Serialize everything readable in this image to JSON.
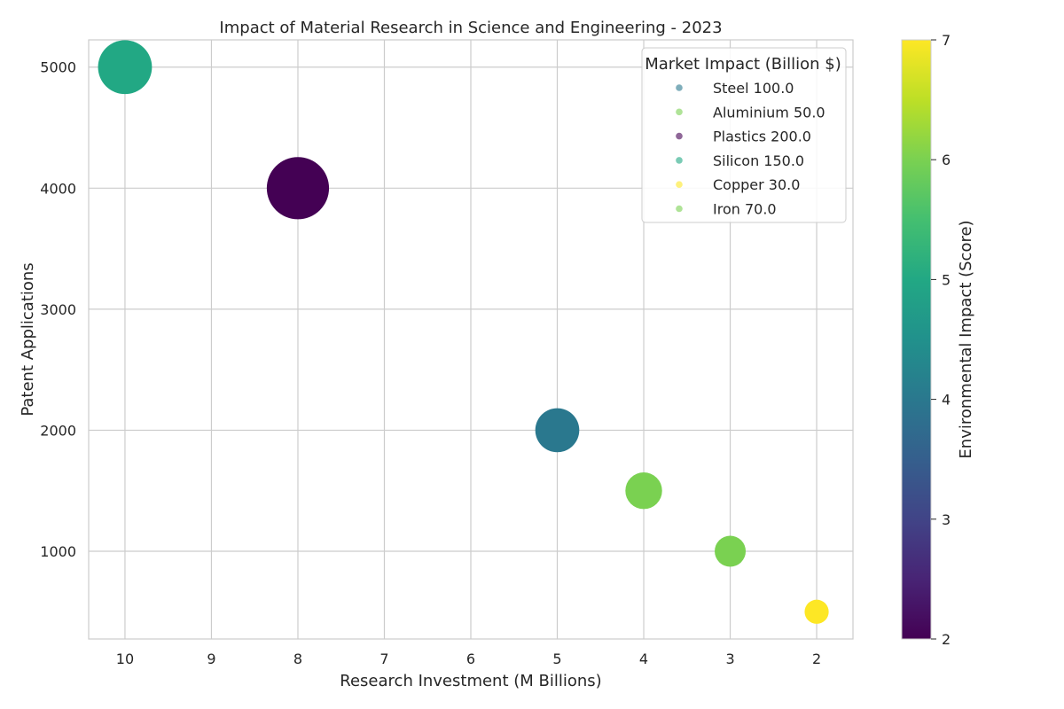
{
  "chart_data": {
    "type": "scatter",
    "title": "Impact of Material Research in Science and Engineering - 2023",
    "xlabel": "Research Investment (M Billions)",
    "ylabel": "Patent Applications",
    "xlim": [
      10.42,
      1.58
    ],
    "ylim": [
      275,
      5225
    ],
    "x_inverted": true,
    "xticks": [
      10,
      9,
      8,
      7,
      6,
      5,
      4,
      3,
      2
    ],
    "yticks": [
      1000,
      2000,
      3000,
      4000,
      5000
    ],
    "grid": true,
    "colormap": "viridis",
    "colorbar": {
      "label": "Environmental Impact (Score)",
      "range": [
        2,
        7
      ],
      "ticks": [
        2,
        3,
        4,
        5,
        6,
        7
      ]
    },
    "size_encoding": "Market Impact (Billion $)",
    "legend": {
      "title": "Market Impact (Billion $)",
      "position": "top-right"
    },
    "series": [
      {
        "name": "Steel",
        "x": 5,
        "y": 2000,
        "market_impact": 100.0,
        "environmental_impact": 4,
        "legend_label": "Steel 100.0",
        "color": "#2a788e"
      },
      {
        "name": "Aluminium",
        "x": 3,
        "y": 1000,
        "market_impact": 50.0,
        "environmental_impact": 6,
        "legend_label": "Aluminium 50.0",
        "color": "#7ad151"
      },
      {
        "name": "Plastics",
        "x": 8,
        "y": 4000,
        "market_impact": 200.0,
        "environmental_impact": 2,
        "legend_label": "Plastics 200.0",
        "color": "#440154"
      },
      {
        "name": "Silicon",
        "x": 10,
        "y": 5000,
        "market_impact": 150.0,
        "environmental_impact": 5,
        "legend_label": "Silicon 150.0",
        "color": "#22a884"
      },
      {
        "name": "Copper",
        "x": 2,
        "y": 500,
        "market_impact": 30.0,
        "environmental_impact": 7,
        "legend_label": "Copper 30.0",
        "color": "#fde725"
      },
      {
        "name": "Iron",
        "x": 4,
        "y": 1500,
        "market_impact": 70.0,
        "environmental_impact": 6,
        "legend_label": "Iron 70.0",
        "color": "#7ad151"
      }
    ]
  }
}
